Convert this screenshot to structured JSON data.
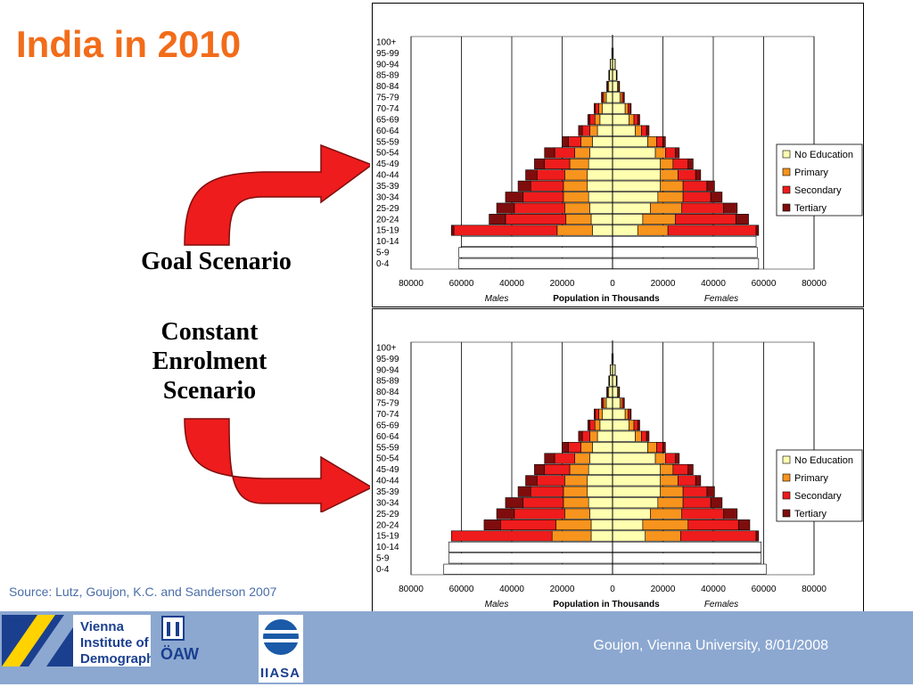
{
  "slide": {
    "title": "India in 2010",
    "goal_label": "Goal Scenario",
    "constant_label": "Constant Enrolment Scenario",
    "source": "Source: Lutz, Goujon, K.C. and Sanderson 2007",
    "footer": "Goujon,  Vienna University, 8/01/2008"
  },
  "logos": {
    "vid_lines": [
      "Vienna",
      "Institute of",
      "Demography"
    ],
    "oaw": "ÖAW",
    "iiasa": "IIASA"
  },
  "colors": {
    "no_education": "#ffffb0",
    "primary": "#f7941d",
    "secondary": "#ee1c1c",
    "tertiary": "#7f0d0d",
    "arrow": "#ee1c1c",
    "title": "#f26c1a",
    "footer_bg": "#8ca8d0"
  },
  "chart_data": [
    {
      "type": "bar",
      "orientation": "horizontal-population-pyramid",
      "xlabel": "Population in Thousands",
      "left_label": "Males",
      "right_label": "Females",
      "xlim": [
        -80000,
        80000
      ],
      "xticks": [
        "80000",
        "60000",
        "40000",
        "20000",
        "0",
        "20000",
        "40000",
        "60000",
        "80000"
      ],
      "legend_position": "right",
      "legend": [
        "No Education",
        "Primary",
        "Secondary",
        "Tertiary"
      ],
      "categories": [
        "100+",
        "95-99",
        "90-94",
        "85-89",
        "80-84",
        "75-79",
        "70-74",
        "65-69",
        "60-64",
        "55-59",
        "50-54",
        "45-49",
        "40-44",
        "35-39",
        "30-34",
        "25-29",
        "20-24",
        "15-19",
        "10-14",
        "5-9",
        "0-4"
      ],
      "males": [
        {
          "age": "100+",
          "values": [
            100,
            0,
            0,
            0
          ]
        },
        {
          "age": "95-99",
          "values": [
            300,
            0,
            0,
            0
          ]
        },
        {
          "age": "90-94",
          "values": [
            800,
            100,
            0,
            0
          ]
        },
        {
          "age": "85-89",
          "values": [
            1200,
            200,
            100,
            0
          ]
        },
        {
          "age": "80-84",
          "values": [
            1500,
            400,
            300,
            100
          ]
        },
        {
          "age": "75-79",
          "values": [
            2500,
            1000,
            600,
            300
          ]
        },
        {
          "age": "70-74",
          "values": [
            4000,
            1500,
            1300,
            500
          ]
        },
        {
          "age": "65-69",
          "values": [
            5000,
            2000,
            2000,
            800
          ]
        },
        {
          "age": "60-64",
          "values": [
            6000,
            3000,
            3000,
            1500
          ]
        },
        {
          "age": "55-59",
          "values": [
            8000,
            4500,
            5000,
            2500
          ]
        },
        {
          "age": "50-54",
          "values": [
            9000,
            6000,
            8000,
            4000
          ]
        },
        {
          "age": "45-49",
          "values": [
            9500,
            7500,
            10000,
            4000
          ]
        },
        {
          "age": "40-44",
          "values": [
            10000,
            9000,
            11000,
            4500
          ]
        },
        {
          "age": "35-39",
          "values": [
            10000,
            9500,
            13000,
            5000
          ]
        },
        {
          "age": "30-34",
          "values": [
            9500,
            10000,
            16000,
            7000
          ]
        },
        {
          "age": "25-29",
          "values": [
            9000,
            10000,
            20000,
            7000
          ]
        },
        {
          "age": "20-24",
          "values": [
            8500,
            10000,
            24000,
            6500
          ]
        },
        {
          "age": "15-19",
          "values": [
            8000,
            14000,
            41000,
            1000
          ]
        },
        {
          "age": "10-14",
          "values": [
            60000,
            0,
            0,
            0
          ]
        },
        {
          "age": "5-9",
          "values": [
            61000,
            0,
            0,
            0
          ]
        },
        {
          "age": "0-4",
          "values": [
            61000,
            0,
            0,
            0
          ]
        }
      ],
      "females": [
        {
          "age": "100+",
          "values": [
            100,
            0,
            0,
            0
          ]
        },
        {
          "age": "95-99",
          "values": [
            300,
            0,
            0,
            0
          ]
        },
        {
          "age": "90-94",
          "values": [
            1000,
            100,
            0,
            0
          ]
        },
        {
          "age": "85-89",
          "values": [
            1500,
            200,
            100,
            0
          ]
        },
        {
          "age": "80-84",
          "values": [
            2000,
            400,
            300,
            100
          ]
        },
        {
          "age": "75-79",
          "values": [
            3000,
            800,
            600,
            300
          ]
        },
        {
          "age": "70-74",
          "values": [
            5000,
            1200,
            800,
            400
          ]
        },
        {
          "age": "65-69",
          "values": [
            6500,
            2000,
            1500,
            800
          ]
        },
        {
          "age": "60-64",
          "values": [
            9000,
            2500,
            2000,
            1000
          ]
        },
        {
          "age": "55-59",
          "values": [
            14000,
            3500,
            2500,
            1000
          ]
        },
        {
          "age": "50-54",
          "values": [
            17000,
            4000,
            4000,
            1500
          ]
        },
        {
          "age": "45-49",
          "values": [
            19000,
            5000,
            6000,
            2000
          ]
        },
        {
          "age": "40-44",
          "values": [
            19000,
            7000,
            7000,
            2000
          ]
        },
        {
          "age": "35-39",
          "values": [
            19000,
            9000,
            9500,
            3000
          ]
        },
        {
          "age": "30-34",
          "values": [
            18000,
            10000,
            11000,
            4500
          ]
        },
        {
          "age": "25-29",
          "values": [
            15000,
            12500,
            16500,
            5500
          ]
        },
        {
          "age": "20-24",
          "values": [
            12000,
            13000,
            24000,
            5000
          ]
        },
        {
          "age": "15-19",
          "values": [
            10000,
            12000,
            35000,
            1000
          ]
        },
        {
          "age": "10-14",
          "values": [
            57000,
            0,
            0,
            0
          ]
        },
        {
          "age": "5-9",
          "values": [
            57500,
            0,
            0,
            0
          ]
        },
        {
          "age": "0-4",
          "values": [
            58000,
            0,
            0,
            0
          ]
        }
      ]
    },
    {
      "type": "bar",
      "orientation": "horizontal-population-pyramid",
      "xlabel": "Population in Thousands",
      "left_label": "Males",
      "right_label": "Females",
      "xlim": [
        -80000,
        80000
      ],
      "xticks": [
        "80000",
        "60000",
        "40000",
        "20000",
        "0",
        "20000",
        "40000",
        "60000",
        "80000"
      ],
      "legend_position": "right",
      "legend": [
        "No Education",
        "Primary",
        "Secondary",
        "Tertiary"
      ],
      "categories": [
        "100+",
        "95-99",
        "90-94",
        "85-89",
        "80-84",
        "75-79",
        "70-74",
        "65-69",
        "60-64",
        "55-59",
        "50-54",
        "45-49",
        "40-44",
        "35-39",
        "30-34",
        "25-29",
        "20-24",
        "15-19",
        "10-14",
        "5-9",
        "0-4"
      ],
      "males": [
        {
          "age": "100+",
          "values": [
            100,
            0,
            0,
            0
          ]
        },
        {
          "age": "95-99",
          "values": [
            300,
            0,
            0,
            0
          ]
        },
        {
          "age": "90-94",
          "values": [
            800,
            100,
            0,
            0
          ]
        },
        {
          "age": "85-89",
          "values": [
            1200,
            200,
            100,
            0
          ]
        },
        {
          "age": "80-84",
          "values": [
            1500,
            400,
            300,
            100
          ]
        },
        {
          "age": "75-79",
          "values": [
            2500,
            1000,
            600,
            300
          ]
        },
        {
          "age": "70-74",
          "values": [
            4000,
            1500,
            1300,
            500
          ]
        },
        {
          "age": "65-69",
          "values": [
            5000,
            2000,
            2000,
            800
          ]
        },
        {
          "age": "60-64",
          "values": [
            6000,
            3000,
            3000,
            1500
          ]
        },
        {
          "age": "55-59",
          "values": [
            8000,
            4500,
            5000,
            2500
          ]
        },
        {
          "age": "50-54",
          "values": [
            9000,
            6000,
            8000,
            4000
          ]
        },
        {
          "age": "45-49",
          "values": [
            9500,
            7500,
            10000,
            4000
          ]
        },
        {
          "age": "40-44",
          "values": [
            10000,
            9000,
            11000,
            4500
          ]
        },
        {
          "age": "35-39",
          "values": [
            10000,
            9500,
            13000,
            5000
          ]
        },
        {
          "age": "30-34",
          "values": [
            9500,
            10000,
            16000,
            7000
          ]
        },
        {
          "age": "25-29",
          "values": [
            9000,
            10000,
            20000,
            7000
          ]
        },
        {
          "age": "20-24",
          "values": [
            8500,
            14000,
            22000,
            6500
          ]
        },
        {
          "age": "15-19",
          "values": [
            8500,
            15500,
            40000,
            0
          ]
        },
        {
          "age": "10-14",
          "values": [
            65000,
            0,
            0,
            0
          ]
        },
        {
          "age": "5-9",
          "values": [
            65000,
            0,
            0,
            0
          ]
        },
        {
          "age": "0-4",
          "values": [
            67000,
            0,
            0,
            0
          ]
        }
      ],
      "females": [
        {
          "age": "100+",
          "values": [
            100,
            0,
            0,
            0
          ]
        },
        {
          "age": "95-99",
          "values": [
            300,
            0,
            0,
            0
          ]
        },
        {
          "age": "90-94",
          "values": [
            1000,
            100,
            0,
            0
          ]
        },
        {
          "age": "85-89",
          "values": [
            1500,
            200,
            100,
            0
          ]
        },
        {
          "age": "80-84",
          "values": [
            2000,
            400,
            300,
            100
          ]
        },
        {
          "age": "75-79",
          "values": [
            3000,
            800,
            600,
            300
          ]
        },
        {
          "age": "70-74",
          "values": [
            5000,
            1200,
            800,
            400
          ]
        },
        {
          "age": "65-69",
          "values": [
            6500,
            2000,
            1500,
            800
          ]
        },
        {
          "age": "60-64",
          "values": [
            9000,
            2500,
            2000,
            1000
          ]
        },
        {
          "age": "55-59",
          "values": [
            14000,
            3500,
            2500,
            1000
          ]
        },
        {
          "age": "50-54",
          "values": [
            17000,
            4000,
            4000,
            1500
          ]
        },
        {
          "age": "45-49",
          "values": [
            19000,
            5000,
            6000,
            2000
          ]
        },
        {
          "age": "40-44",
          "values": [
            19000,
            7000,
            7000,
            2000
          ]
        },
        {
          "age": "35-39",
          "values": [
            19000,
            9000,
            9500,
            3000
          ]
        },
        {
          "age": "30-34",
          "values": [
            18000,
            10000,
            11000,
            4500
          ]
        },
        {
          "age": "25-29",
          "values": [
            15000,
            12500,
            16500,
            5500
          ]
        },
        {
          "age": "20-24",
          "values": [
            12000,
            18000,
            20000,
            4500
          ]
        },
        {
          "age": "15-19",
          "values": [
            13000,
            14000,
            30000,
            1000
          ]
        },
        {
          "age": "10-14",
          "values": [
            59000,
            0,
            0,
            0
          ]
        },
        {
          "age": "5-9",
          "values": [
            59000,
            0,
            0,
            0
          ]
        },
        {
          "age": "0-4",
          "values": [
            61000,
            0,
            0,
            0
          ]
        }
      ]
    }
  ]
}
